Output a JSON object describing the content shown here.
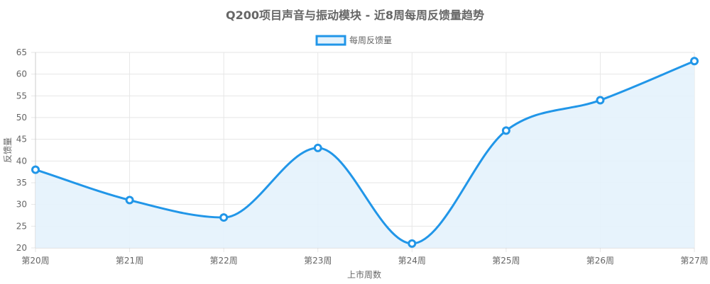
{
  "chart_data": {
    "type": "area",
    "title": "Q200项目声音与振动模块 - 近8周每周反馈量趋势",
    "xlabel": "上市周数",
    "ylabel": "反馈量",
    "categories": [
      "第20周",
      "第21周",
      "第22周",
      "第23周",
      "第24周",
      "第25周",
      "第26周",
      "第27周"
    ],
    "series": [
      {
        "name": "每周反馈量",
        "values": [
          38,
          31,
          27,
          43,
          21,
          47,
          54,
          63
        ]
      }
    ],
    "ylim": [
      20,
      65
    ],
    "yticks": [
      20,
      25,
      30,
      35,
      40,
      45,
      50,
      55,
      60,
      65
    ],
    "grid": true,
    "legend": "top-center",
    "colors": {
      "line": "#2196e8",
      "fill": "#e4f2fc",
      "grid": "#e6e6e6",
      "axis": "#cccccc",
      "text": "#666666"
    }
  }
}
